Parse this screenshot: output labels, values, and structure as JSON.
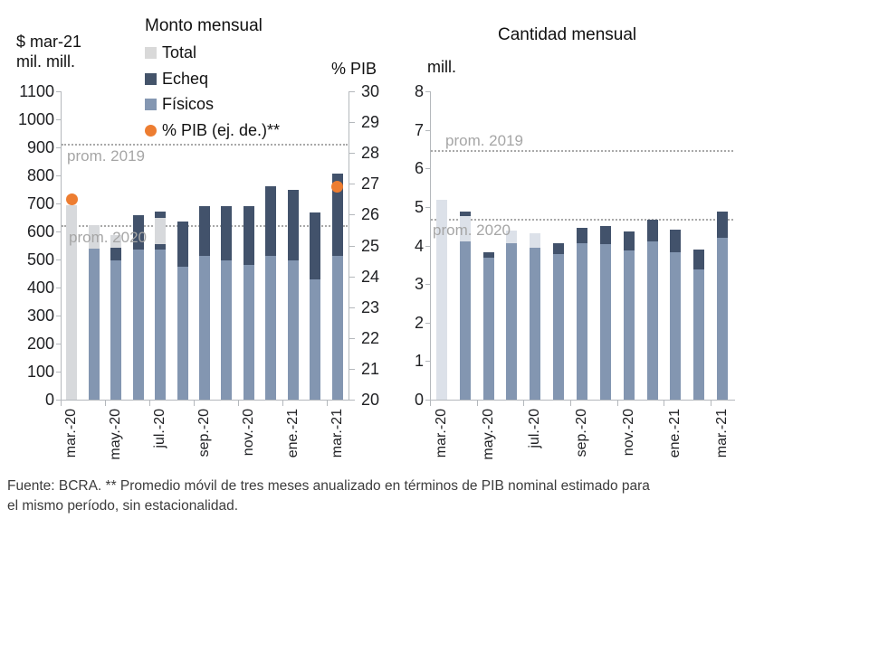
{
  "colors": {
    "total": "#d7d9dc",
    "total_light": "#dce1e9",
    "echeq": "#42526b",
    "fisicos": "#8396b1",
    "pib_dot": "#ed7d31",
    "legend_total": "#d9d9d9",
    "legend_echeq": "#44546a",
    "legend_fisicos": "#8497b2",
    "axis": "#b4b8bc",
    "ref_line": "#a9a9a9",
    "ref_text": "#a6a6a6"
  },
  "footer": {
    "line1": "Fuente: BCRA. ** Promedio móvil de tres meses anualizado en términos de PIB nominal estimado para",
    "line2": "el mismo período, sin estacionalidad."
  },
  "chart_data": [
    {
      "type": "bar",
      "title": "Monto mensual",
      "axis_label_line1": "$ mar-21",
      "axis_label_line2": "mil. mill.",
      "right_axis_label": "% PIB",
      "ylim": [
        0,
        1100
      ],
      "ytick_step": 100,
      "y2lim": [
        20,
        30
      ],
      "y2tick_step": 1,
      "grid": "off",
      "legend_position": "top-left",
      "legend": [
        {
          "label": "Total",
          "color_key": "legend_total",
          "shape": "square"
        },
        {
          "label": "Echeq",
          "color_key": "legend_echeq",
          "shape": "square"
        },
        {
          "label": "Físicos",
          "color_key": "legend_fisicos",
          "shape": "square"
        },
        {
          "label": "% PIB (ej. de.)**",
          "color_key": "pib_dot",
          "shape": "circle"
        }
      ],
      "categories": [
        "mar.-20",
        "abr.-20",
        "may.-20",
        "jun.-20",
        "jul.-20",
        "ago.-20",
        "sep.-20",
        "oct.-20",
        "nov.-20",
        "dic.-20",
        "ene.-21",
        "feb.-21",
        "mar.-21"
      ],
      "x_tick_labels": [
        "mar.-20",
        "may.-20",
        "jul.-20",
        "sep.-20",
        "nov.-20",
        "ene.-21",
        "mar.-21"
      ],
      "bars": [
        {
          "category": "mar.-20",
          "segments": [
            [
              "total",
              0,
              695
            ]
          ]
        },
        {
          "category": "abr.-20",
          "segments": [
            [
              "fisicos",
              0,
              538
            ],
            [
              "total",
              538,
              622
            ]
          ]
        },
        {
          "category": "may.-20",
          "segments": [
            [
              "fisicos",
              0,
              497
            ],
            [
              "echeq",
              497,
              542
            ],
            [
              "total",
              542,
              587
            ]
          ]
        },
        {
          "category": "jun.-20",
          "segments": [
            [
              "fisicos",
              0,
              537
            ],
            [
              "echeq",
              537,
              657
            ]
          ]
        },
        {
          "category": "jul.-20",
          "segments": [
            [
              "fisicos",
              0,
              535
            ],
            [
              "echeq",
              535,
              556
            ],
            [
              "total",
              556,
              648
            ],
            [
              "echeq",
              648,
              672
            ]
          ]
        },
        {
          "category": "ago.-20",
          "segments": [
            [
              "fisicos",
              0,
              474
            ],
            [
              "echeq",
              474,
              636
            ]
          ]
        },
        {
          "category": "sep.-20",
          "segments": [
            [
              "fisicos",
              0,
              512
            ],
            [
              "echeq",
              512,
              690
            ]
          ]
        },
        {
          "category": "oct.-20",
          "segments": [
            [
              "fisicos",
              0,
              496
            ],
            [
              "echeq",
              496,
              691
            ]
          ]
        },
        {
          "category": "nov.-20",
          "segments": [
            [
              "fisicos",
              0,
              480
            ],
            [
              "echeq",
              480,
              689
            ]
          ]
        },
        {
          "category": "dic.-20",
          "segments": [
            [
              "fisicos",
              0,
              514
            ],
            [
              "echeq",
              514,
              761
            ]
          ]
        },
        {
          "category": "ene.-21",
          "segments": [
            [
              "fisicos",
              0,
              498
            ],
            [
              "echeq",
              498,
              748
            ]
          ]
        },
        {
          "category": "feb.-21",
          "segments": [
            [
              "fisicos",
              0,
              430
            ],
            [
              "echeq",
              430,
              668
            ]
          ]
        },
        {
          "category": "mar.-21",
          "segments": [
            [
              "fisicos",
              0,
              514
            ],
            [
              "echeq",
              514,
              808
            ]
          ]
        }
      ],
      "pib_dots": [
        {
          "category": "mar.-20",
          "value": 26.5
        },
        {
          "category": "mar.-21",
          "value": 26.9
        }
      ],
      "ref_lines": [
        {
          "label": "prom. 2019",
          "value": 910,
          "label_side": "below"
        },
        {
          "label": "prom. 2020",
          "value": 618,
          "label_side": "below"
        }
      ]
    },
    {
      "type": "bar",
      "title": "Cantidad mensual",
      "axis_label": "mill.",
      "ylim": [
        0,
        8
      ],
      "ytick_step": 1,
      "grid": "off",
      "categories": [
        "mar.-20",
        "abr.-20",
        "may.-20",
        "jun.-20",
        "jul.-20",
        "ago.-20",
        "sep.-20",
        "oct.-20",
        "nov.-20",
        "dic.-20",
        "ene.-21",
        "feb.-21",
        "mar.-21"
      ],
      "x_tick_labels": [
        "mar.-20",
        "may.-20",
        "jul.-20",
        "sep.-20",
        "nov.-20",
        "ene.-21",
        "mar.-21"
      ],
      "bars": [
        {
          "category": "mar.-20",
          "segments": [
            [
              "total_light",
              0,
              5.18
            ]
          ]
        },
        {
          "category": "abr.-20",
          "segments": [
            [
              "fisicos",
              0,
              4.1
            ],
            [
              "total_light",
              4.1,
              4.77
            ],
            [
              "echeq",
              4.77,
              4.87
            ]
          ]
        },
        {
          "category": "may.-20",
          "segments": [
            [
              "fisicos",
              0,
              3.68
            ],
            [
              "echeq",
              3.68,
              3.82
            ]
          ]
        },
        {
          "category": "jun.-20",
          "segments": [
            [
              "fisicos",
              0,
              4.05
            ],
            [
              "total_light",
              4.05,
              4.39
            ]
          ]
        },
        {
          "category": "jul.-20",
          "segments": [
            [
              "fisicos",
              0,
              3.95
            ],
            [
              "total_light",
              3.95,
              4.31
            ]
          ]
        },
        {
          "category": "ago.-20",
          "segments": [
            [
              "fisicos",
              0,
              3.78
            ],
            [
              "echeq",
              3.78,
              4.07
            ]
          ]
        },
        {
          "category": "sep.-20",
          "segments": [
            [
              "fisicos",
              0,
              4.07
            ],
            [
              "echeq",
              4.07,
              4.45
            ]
          ]
        },
        {
          "category": "oct.-20",
          "segments": [
            [
              "fisicos",
              0,
              4.03
            ],
            [
              "echeq",
              4.03,
              4.5
            ]
          ]
        },
        {
          "category": "nov.-20",
          "segments": [
            [
              "fisicos",
              0,
              3.87
            ],
            [
              "echeq",
              3.87,
              4.36
            ]
          ]
        },
        {
          "category": "dic.-20",
          "segments": [
            [
              "fisicos",
              0,
              4.11
            ],
            [
              "echeq",
              4.11,
              4.67
            ]
          ]
        },
        {
          "category": "ene.-21",
          "segments": [
            [
              "fisicos",
              0,
              3.83
            ],
            [
              "echeq",
              3.83,
              4.4
            ]
          ]
        },
        {
          "category": "feb.-21",
          "segments": [
            [
              "fisicos",
              0,
              3.37
            ],
            [
              "echeq",
              3.37,
              3.9
            ]
          ]
        },
        {
          "category": "mar.-21",
          "segments": [
            [
              "fisicos",
              0,
              4.21
            ],
            [
              "echeq",
              4.21,
              4.89
            ]
          ]
        }
      ],
      "ref_lines": [
        {
          "label": "prom. 2019",
          "value": 6.46,
          "label_side": "above"
        },
        {
          "label": "prom. 2020",
          "value": 4.68,
          "label_side": "below"
        }
      ]
    }
  ]
}
